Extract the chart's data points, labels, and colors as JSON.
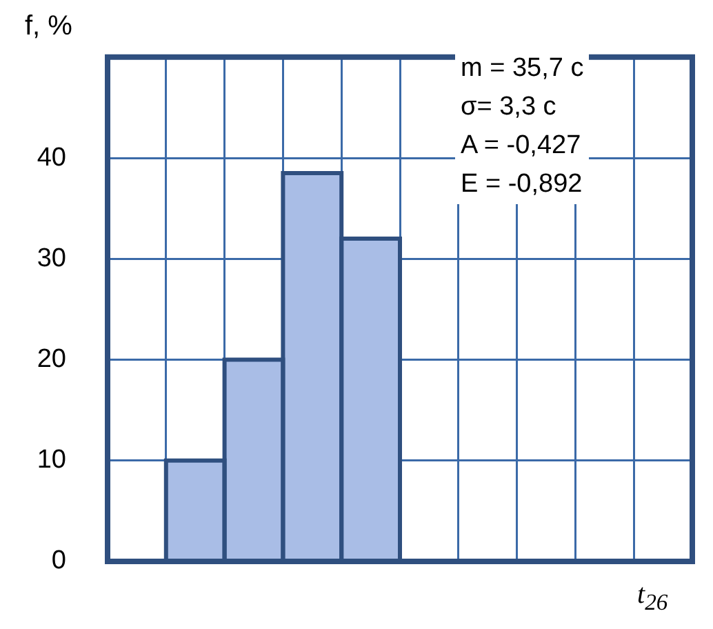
{
  "chart_data": {
    "type": "bar",
    "ylabel": "f, %",
    "xlabel": "t$_{26}$",
    "categories": [
      null,
      null,
      null,
      null,
      null,
      null,
      null,
      null,
      null,
      null
    ],
    "values": [
      null,
      10,
      20,
      38.5,
      32,
      null,
      null,
      null,
      null,
      null
    ],
    "color": "#a9bde6",
    "ylim": [
      0,
      50
    ],
    "yticks": [
      0,
      10,
      20,
      30,
      40
    ],
    "grid": true,
    "legend": false,
    "tick_labels": "y",
    "annotations": [
      "m = 35,7 c",
      "σ= 3,3 c",
      "A = -0,427",
      "E = -0,892"
    ]
  }
}
